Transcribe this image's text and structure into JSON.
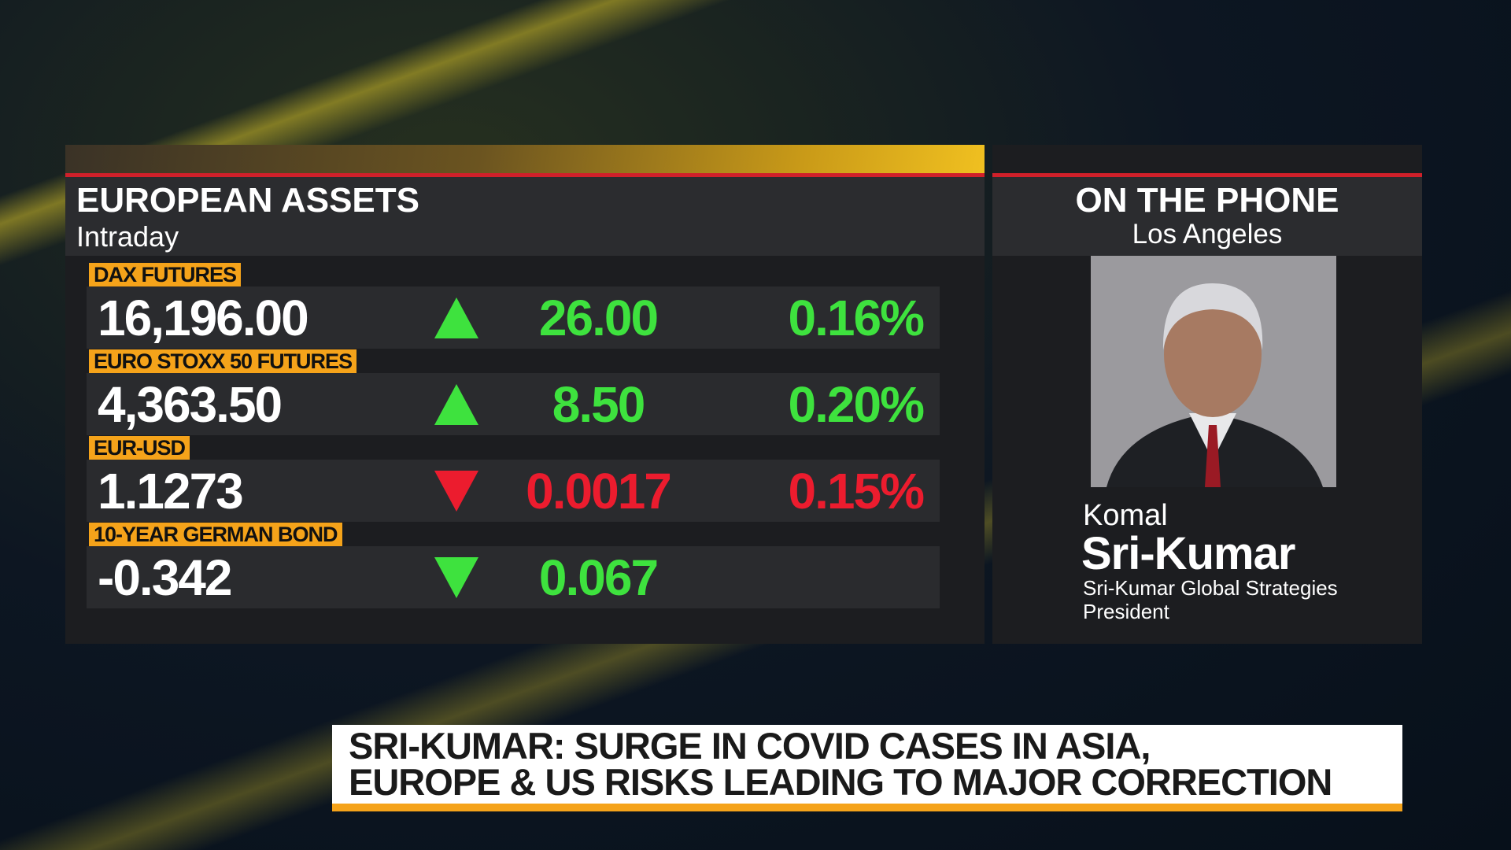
{
  "panel": {
    "title": "EUROPEAN ASSETS",
    "subtitle": "Intraday",
    "rows": [
      {
        "label": "DAX FUTURES",
        "price": "16,196.00",
        "direction": "up",
        "change": "26.00",
        "percent": "0.16%",
        "color": "#3ee23e"
      },
      {
        "label": "EURO STOXX 50 FUTURES",
        "price": "4,363.50",
        "direction": "up",
        "change": "8.50",
        "percent": "0.20%",
        "color": "#3ee23e"
      },
      {
        "label": "EUR-USD",
        "price": "1.1273",
        "direction": "down",
        "change": "0.0017",
        "percent": "0.15%",
        "color": "#ec1c2e"
      },
      {
        "label": "10-YEAR GERMAN BOND",
        "price": "-0.342",
        "direction": "down",
        "change": "0.067",
        "color": "#3ee23e"
      }
    ]
  },
  "guest": {
    "title": "ON THE PHONE",
    "location": "Los Angeles",
    "first_name": "Komal",
    "last_name": "Sri-Kumar",
    "company": "Sri-Kumar Global Strategies",
    "role": "President"
  },
  "ticker": {
    "lines": [
      "SRI-KUMAR: SURGE IN COVID CASES IN ASIA,",
      "EUROPE & US RISKS LEADING TO MAJOR CORRECTION"
    ]
  }
}
